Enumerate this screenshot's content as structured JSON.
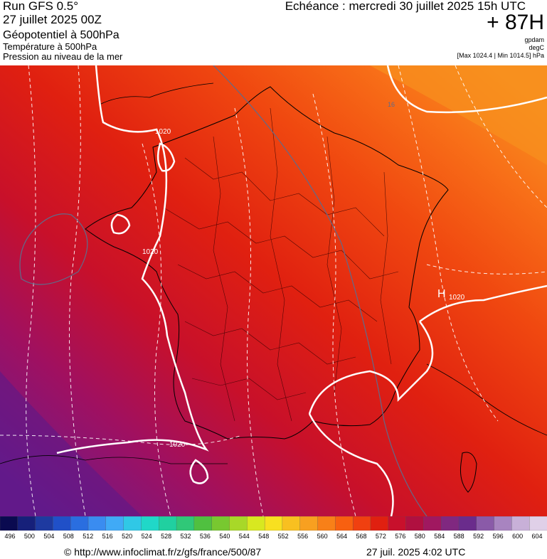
{
  "header": {
    "run_title": "Run GFS 0.5°",
    "run_date": "27 juillet 2025 00Z",
    "param_1": "Géopotentiel à 500hPa",
    "param_2": "Température à 500hPa",
    "param_3": "Pression au niveau de la mer",
    "echeance": "Echéance : mercredi 30 juillet 2025 15h UTC",
    "horizon": "+ 87H",
    "unit_1": "gpdam",
    "unit_2": "degC",
    "minmax": "[Max 1024.4 | Min 1014.5] hPa"
  },
  "map": {
    "isobar_labels": [
      "1020",
      "1020",
      "1020"
    ],
    "isotherm_label": "16",
    "pressure_center_letter": "H",
    "pressure_center_value": "1020"
  },
  "colorbar": {
    "labels": [
      "496",
      "500",
      "504",
      "508",
      "512",
      "516",
      "520",
      "524",
      "528",
      "532",
      "536",
      "540",
      "544",
      "548",
      "552",
      "556",
      "560",
      "564",
      "568",
      "572",
      "576",
      "580",
      "584",
      "588",
      "592",
      "596",
      "600",
      "604"
    ],
    "colors": [
      "#0a0a50",
      "#16207a",
      "#1e3aa0",
      "#2050c8",
      "#2a6ee0",
      "#3a8cf0",
      "#40aaf6",
      "#30c8e6",
      "#20d8c8",
      "#20d0a0",
      "#30c878",
      "#50c040",
      "#78c830",
      "#a8d828",
      "#d8e820",
      "#f8e020",
      "#f8c020",
      "#f8a020",
      "#f88018",
      "#f86010",
      "#f04010",
      "#e02010",
      "#c8102c",
      "#b01040",
      "#a01860",
      "#802880",
      "#6a2c8c",
      "#8a5aa8",
      "#a884c0",
      "#c8b0d8",
      "#e0d0e8"
    ]
  },
  "footer": {
    "url": "© http://www.infoclimat.fr/z/gfs/france/500/87",
    "timestamp": "27 juil. 2025  4:02 UTC"
  }
}
